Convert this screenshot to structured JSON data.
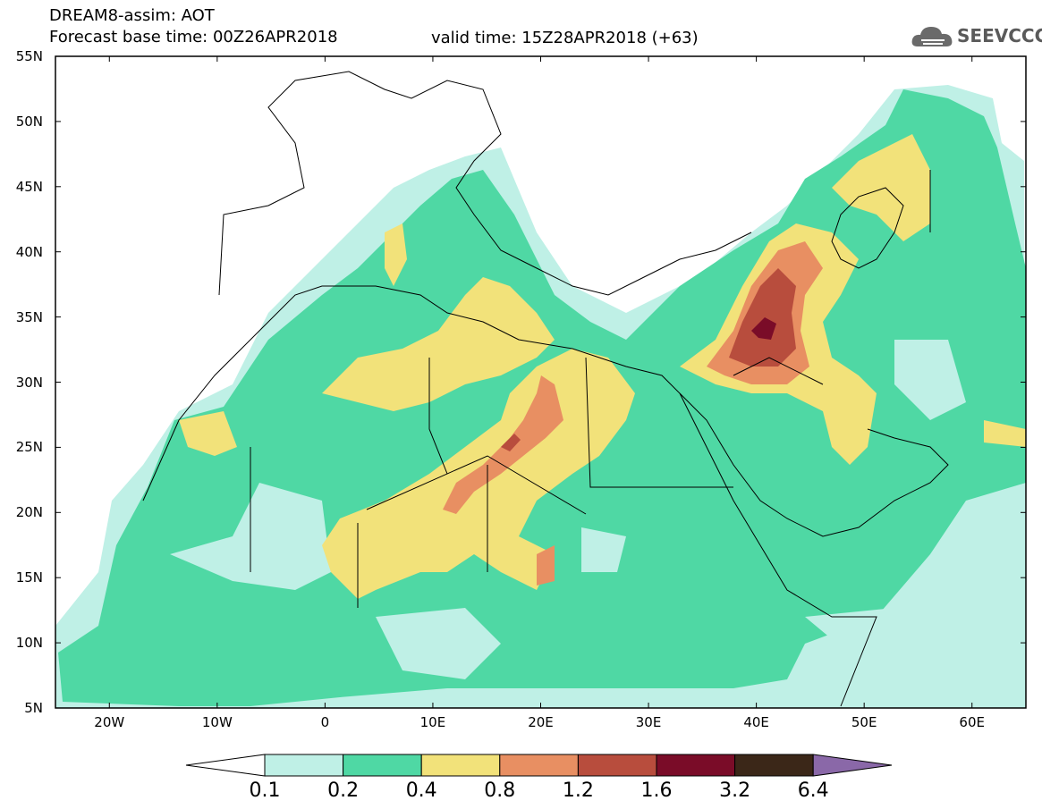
{
  "header": {
    "line1": "DREAM8-assim: AOT",
    "line2": "Forecast base time: 00Z26APR2018",
    "valid": "valid time: 15Z28APR2018 (+63)"
  },
  "logo": {
    "text": "SEEVCCC",
    "icon": "cloud-icon"
  },
  "map": {
    "type": "heatmap",
    "variable": "AOT",
    "lat_ticks": [
      "55N",
      "50N",
      "45N",
      "40N",
      "35N",
      "30N",
      "25N",
      "20N",
      "15N",
      "10N",
      "5N"
    ],
    "lon_ticks": [
      "20W",
      "10W",
      "0",
      "10E",
      "20E",
      "30E",
      "40E",
      "50E",
      "60E"
    ],
    "lat_range": [
      5,
      55
    ],
    "lon_range": [
      -25,
      65
    ],
    "colorbar": {
      "labels": [
        "0.1",
        "0.2",
        "0.4",
        "0.8",
        "1.2",
        "1.6",
        "3.2",
        "6.4"
      ],
      "colors": [
        "#ffffff",
        "#bff0e6",
        "#4fd8a4",
        "#f2e27a",
        "#e88f62",
        "#b84d3d",
        "#7a0c28",
        "#3b2718",
        "#8a68a8"
      ]
    }
  }
}
